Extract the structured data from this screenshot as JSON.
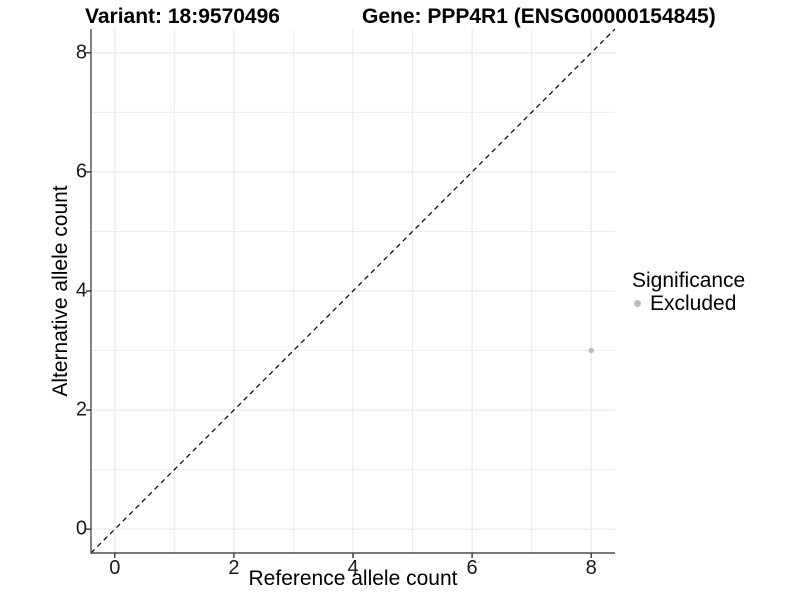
{
  "titles": {
    "variant": "Variant: 18:9570496",
    "gene": "Gene: PPP4R1 (ENSG00000154845)"
  },
  "axes": {
    "x": {
      "label": "Reference allele count"
    },
    "y": {
      "label": "Alternative allele count"
    }
  },
  "legend": {
    "title": "Significance",
    "items": [
      {
        "label": "Excluded",
        "color": "#bcbcbc",
        "marker": "circle-icon"
      }
    ]
  },
  "chart_data": {
    "type": "scatter",
    "title": "Variant: 18:9570496    Gene: PPP4R1 (ENSG00000154845)",
    "xlabel": "Reference allele count",
    "ylabel": "Alternative allele count",
    "xlim": [
      -0.4,
      8.4
    ],
    "ylim": [
      -0.4,
      8.4
    ],
    "x_ticks": [
      0,
      2,
      4,
      6,
      8
    ],
    "y_ticks": [
      0,
      2,
      4,
      6,
      8
    ],
    "grid": {
      "on": true,
      "major_color": "#e4e4e4",
      "minor_color": "#ededed"
    },
    "series": [
      {
        "name": "Excluded",
        "color": "#bcbcbc",
        "points": [
          {
            "x": 8,
            "y": 3
          }
        ]
      }
    ],
    "reference_line": {
      "slope": 1,
      "intercept": 0,
      "style": "dashed",
      "color": "#000000"
    },
    "legend_position": "right",
    "legend_title": "Significance"
  },
  "colors": {
    "axis_line": "#4d4d4d",
    "tick": "#333333",
    "text": "#000000",
    "background": "#ffffff"
  }
}
